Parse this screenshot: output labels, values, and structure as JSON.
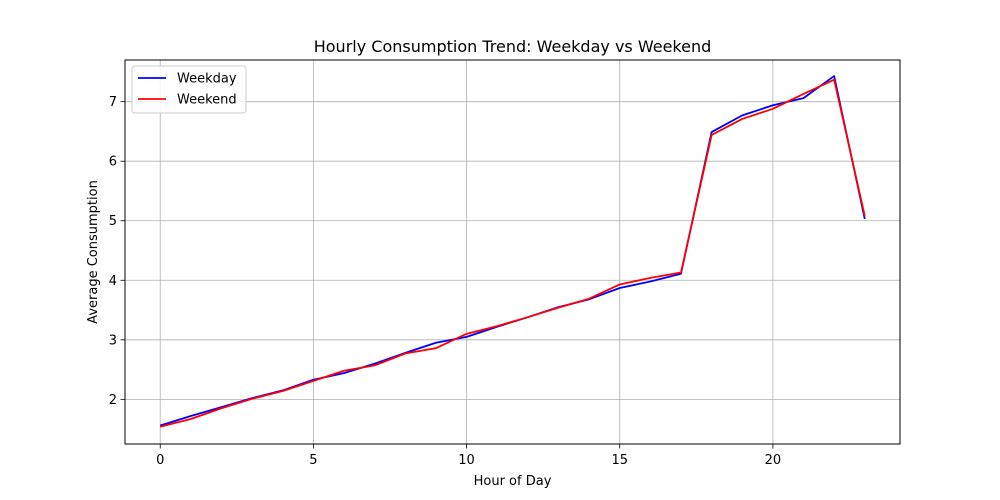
{
  "chart_data": {
    "type": "line",
    "title": "Hourly Consumption Trend: Weekday vs Weekend",
    "xlabel": "Hour of Day",
    "ylabel": "Average Consumption",
    "xlim": [
      -1.15,
      24.15
    ],
    "ylim": [
      1.25,
      7.7
    ],
    "xticks": [
      0,
      5,
      10,
      15,
      20
    ],
    "yticks": [
      2,
      3,
      4,
      5,
      6,
      7
    ],
    "grid": true,
    "legend_position": "top-left",
    "x": [
      0,
      1,
      2,
      3,
      4,
      5,
      6,
      7,
      8,
      9,
      10,
      11,
      12,
      13,
      14,
      15,
      16,
      17,
      18,
      19,
      20,
      21,
      22,
      23
    ],
    "series": [
      {
        "name": "Weekday",
        "color": "#0000ff",
        "values": [
          1.56,
          1.72,
          1.87,
          2.02,
          2.15,
          2.33,
          2.44,
          2.6,
          2.78,
          2.95,
          3.05,
          3.22,
          3.38,
          3.55,
          3.68,
          3.87,
          3.98,
          4.11,
          6.49,
          6.77,
          6.94,
          7.06,
          7.43,
          5.03
        ]
      },
      {
        "name": "Weekend",
        "color": "#ff0000",
        "values": [
          1.54,
          1.67,
          1.85,
          2.01,
          2.14,
          2.31,
          2.48,
          2.57,
          2.77,
          2.86,
          3.1,
          3.23,
          3.38,
          3.54,
          3.69,
          3.93,
          4.04,
          4.13,
          6.44,
          6.71,
          6.88,
          7.13,
          7.37,
          5.08
        ]
      }
    ]
  }
}
